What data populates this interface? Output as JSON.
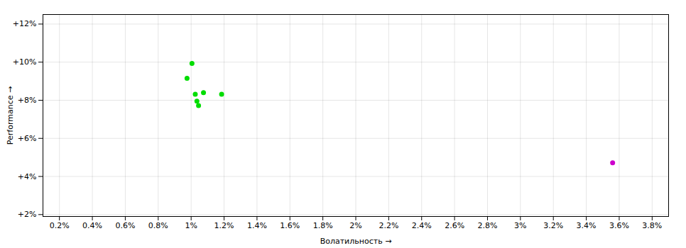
{
  "chart_data": {
    "type": "scatter",
    "xlabel": "Волатильность",
    "ylabel": "Performance",
    "xlim": [
      0.001,
      0.039
    ],
    "ylim": [
      0.019,
      0.125
    ],
    "xticks": [
      {
        "value": 0.002,
        "label": "0.2%"
      },
      {
        "value": 0.004,
        "label": "0.4%"
      },
      {
        "value": 0.006,
        "label": "0.6%"
      },
      {
        "value": 0.008,
        "label": "0.8%"
      },
      {
        "value": 0.01,
        "label": "1%"
      },
      {
        "value": 0.012,
        "label": "1.2%"
      },
      {
        "value": 0.014,
        "label": "1.4%"
      },
      {
        "value": 0.016,
        "label": "1.6%"
      },
      {
        "value": 0.018,
        "label": "1.8%"
      },
      {
        "value": 0.02,
        "label": "2%"
      },
      {
        "value": 0.022,
        "label": "2.2%"
      },
      {
        "value": 0.024,
        "label": "2.4%"
      },
      {
        "value": 0.026,
        "label": "2.6%"
      },
      {
        "value": 0.028,
        "label": "2.8%"
      },
      {
        "value": 0.03,
        "label": "3%"
      },
      {
        "value": 0.032,
        "label": "3.2%"
      },
      {
        "value": 0.034,
        "label": "3.4%"
      },
      {
        "value": 0.036,
        "label": "3.6%"
      },
      {
        "value": 0.038,
        "label": "3.8%"
      }
    ],
    "yticks": [
      {
        "value": 0.02,
        "label": "+2%"
      },
      {
        "value": 0.04,
        "label": "+4%"
      },
      {
        "value": 0.06,
        "label": "+6%"
      },
      {
        "value": 0.08,
        "label": "+8%"
      },
      {
        "value": 0.1,
        "label": "+10%"
      },
      {
        "value": 0.12,
        "label": "+12%"
      }
    ],
    "grid": true,
    "series": [
      {
        "color": "#00dd00",
        "x": [
          0.01005,
          0.00975,
          0.01025,
          0.01075,
          0.01035,
          0.01045,
          0.01185
        ],
        "values": [
          0.0993,
          0.0915,
          0.0832,
          0.084,
          0.0795,
          0.0772,
          0.0832
        ]
      },
      {
        "color": "#cc00cc",
        "x": [
          0.0356
        ],
        "values": [
          0.0472
        ]
      }
    ]
  }
}
